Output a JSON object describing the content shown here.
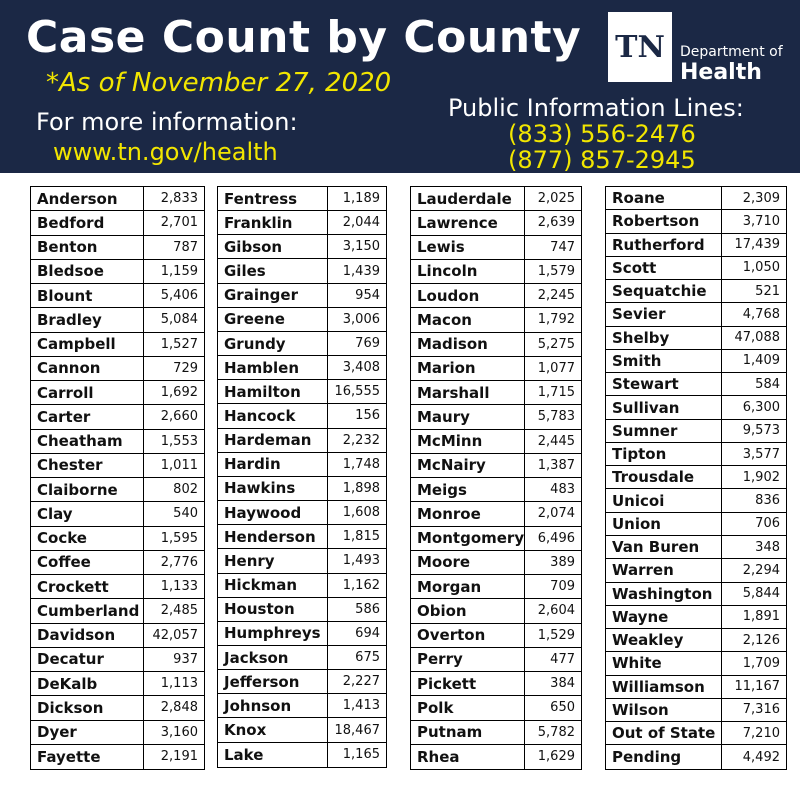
{
  "header": {
    "title": "Case Count by County",
    "as_of": "*As of November 27, 2020",
    "more_info": "For more information:",
    "url": "www.tn.gov/health",
    "public_lines_label": "Public Information Lines:",
    "phones": [
      "(833) 556-2476",
      "(877) 857-2945"
    ],
    "logo_text": "TN",
    "dept_label": "Department of",
    "health_label": "Health"
  },
  "colors": {
    "header_bg": "#1b2845",
    "accent_yellow": "#f2e600"
  },
  "columns": [
    [
      {
        "name": "Anderson",
        "count": "2,833"
      },
      {
        "name": "Bedford",
        "count": "2,701"
      },
      {
        "name": "Benton",
        "count": "787"
      },
      {
        "name": "Bledsoe",
        "count": "1,159"
      },
      {
        "name": "Blount",
        "count": "5,406"
      },
      {
        "name": "Bradley",
        "count": "5,084"
      },
      {
        "name": "Campbell",
        "count": "1,527"
      },
      {
        "name": "Cannon",
        "count": "729"
      },
      {
        "name": "Carroll",
        "count": "1,692"
      },
      {
        "name": "Carter",
        "count": "2,660"
      },
      {
        "name": "Cheatham",
        "count": "1,553"
      },
      {
        "name": "Chester",
        "count": "1,011"
      },
      {
        "name": "Claiborne",
        "count": "802"
      },
      {
        "name": "Clay",
        "count": "540"
      },
      {
        "name": "Cocke",
        "count": "1,595"
      },
      {
        "name": "Coffee",
        "count": "2,776"
      },
      {
        "name": "Crockett",
        "count": "1,133"
      },
      {
        "name": "Cumberland",
        "count": "2,485"
      },
      {
        "name": "Davidson",
        "count": "42,057"
      },
      {
        "name": "Decatur",
        "count": "937"
      },
      {
        "name": "DeKalb",
        "count": "1,113"
      },
      {
        "name": "Dickson",
        "count": "2,848"
      },
      {
        "name": "Dyer",
        "count": "3,160"
      },
      {
        "name": "Fayette",
        "count": "2,191"
      }
    ],
    [
      {
        "name": "Fentress",
        "count": "1,189"
      },
      {
        "name": "Franklin",
        "count": "2,044"
      },
      {
        "name": "Gibson",
        "count": "3,150"
      },
      {
        "name": "Giles",
        "count": "1,439"
      },
      {
        "name": "Grainger",
        "count": "954"
      },
      {
        "name": "Greene",
        "count": "3,006"
      },
      {
        "name": "Grundy",
        "count": "769"
      },
      {
        "name": "Hamblen",
        "count": "3,408"
      },
      {
        "name": "Hamilton",
        "count": "16,555"
      },
      {
        "name": "Hancock",
        "count": "156"
      },
      {
        "name": "Hardeman",
        "count": "2,232"
      },
      {
        "name": "Hardin",
        "count": "1,748"
      },
      {
        "name": "Hawkins",
        "count": "1,898"
      },
      {
        "name": "Haywood",
        "count": "1,608"
      },
      {
        "name": "Henderson",
        "count": "1,815"
      },
      {
        "name": "Henry",
        "count": "1,493"
      },
      {
        "name": "Hickman",
        "count": "1,162"
      },
      {
        "name": "Houston",
        "count": "586"
      },
      {
        "name": "Humphreys",
        "count": "694"
      },
      {
        "name": "Jackson",
        "count": "675"
      },
      {
        "name": "Jefferson",
        "count": "2,227"
      },
      {
        "name": "Johnson",
        "count": "1,413"
      },
      {
        "name": "Knox",
        "count": "18,467"
      },
      {
        "name": "Lake",
        "count": "1,165"
      }
    ],
    [
      {
        "name": "Lauderdale",
        "count": "2,025"
      },
      {
        "name": "Lawrence",
        "count": "2,639"
      },
      {
        "name": "Lewis",
        "count": "747"
      },
      {
        "name": "Lincoln",
        "count": "1,579"
      },
      {
        "name": "Loudon",
        "count": "2,245"
      },
      {
        "name": "Macon",
        "count": "1,792"
      },
      {
        "name": "Madison",
        "count": "5,275"
      },
      {
        "name": "Marion",
        "count": "1,077"
      },
      {
        "name": "Marshall",
        "count": "1,715"
      },
      {
        "name": "Maury",
        "count": "5,783"
      },
      {
        "name": "McMinn",
        "count": "2,445"
      },
      {
        "name": "McNairy",
        "count": "1,387"
      },
      {
        "name": "Meigs",
        "count": "483"
      },
      {
        "name": "Monroe",
        "count": "2,074"
      },
      {
        "name": "Montgomery",
        "count": "6,496"
      },
      {
        "name": "Moore",
        "count": "389"
      },
      {
        "name": "Morgan",
        "count": "709"
      },
      {
        "name": "Obion",
        "count": "2,604"
      },
      {
        "name": "Overton",
        "count": "1,529"
      },
      {
        "name": "Perry",
        "count": "477"
      },
      {
        "name": "Pickett",
        "count": "384"
      },
      {
        "name": "Polk",
        "count": "650"
      },
      {
        "name": "Putnam",
        "count": "5,782"
      },
      {
        "name": "Rhea",
        "count": "1,629"
      }
    ],
    [
      {
        "name": "Roane",
        "count": "2,309"
      },
      {
        "name": "Robertson",
        "count": "3,710"
      },
      {
        "name": "Rutherford",
        "count": "17,439"
      },
      {
        "name": "Scott",
        "count": "1,050"
      },
      {
        "name": "Sequatchie",
        "count": "521"
      },
      {
        "name": "Sevier",
        "count": "4,768"
      },
      {
        "name": "Shelby",
        "count": "47,088"
      },
      {
        "name": "Smith",
        "count": "1,409"
      },
      {
        "name": "Stewart",
        "count": "584"
      },
      {
        "name": "Sullivan",
        "count": "6,300"
      },
      {
        "name": "Sumner",
        "count": "9,573"
      },
      {
        "name": "Tipton",
        "count": "3,577"
      },
      {
        "name": "Trousdale",
        "count": "1,902"
      },
      {
        "name": "Unicoi",
        "count": "836"
      },
      {
        "name": "Union",
        "count": "706"
      },
      {
        "name": "Van Buren",
        "count": "348"
      },
      {
        "name": "Warren",
        "count": "2,294"
      },
      {
        "name": "Washington",
        "count": "5,844"
      },
      {
        "name": "Wayne",
        "count": "1,891"
      },
      {
        "name": "Weakley",
        "count": "2,126"
      },
      {
        "name": "White",
        "count": "1,709"
      },
      {
        "name": "Williamson",
        "count": "11,167"
      },
      {
        "name": "Wilson",
        "count": "7,316"
      },
      {
        "name": "Out of State",
        "count": "7,210"
      },
      {
        "name": "Pending",
        "count": "4,492"
      }
    ]
  ]
}
